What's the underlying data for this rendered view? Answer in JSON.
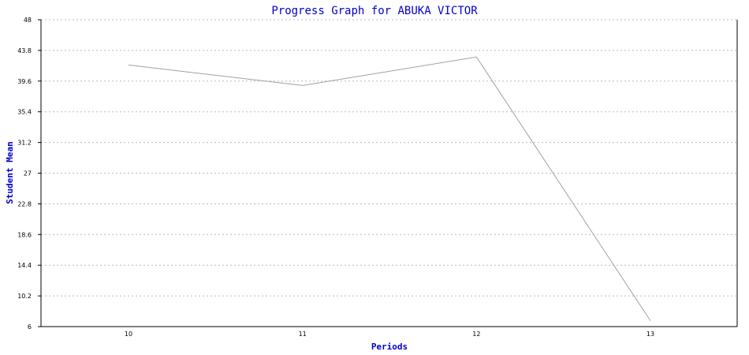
{
  "chart_data": {
    "type": "line",
    "title": "Progress Graph for ABUKA VICTOR",
    "xlabel": "Periods",
    "ylabel": "Student Mean",
    "categories": [
      "10",
      "11",
      "12",
      "13"
    ],
    "y_ticks": [
      "6",
      "10.2",
      "14.4",
      "18.6",
      "22.8",
      "27",
      "31.2",
      "35.4",
      "39.6",
      "43.8",
      "48"
    ],
    "ylim": [
      6,
      48
    ],
    "grid": true,
    "legend": "none",
    "series": [
      {
        "values": [
          41.8,
          39,
          42.9,
          6.8
        ]
      }
    ],
    "colors": {
      "title": "#0000cc",
      "series": "#a0a0a0",
      "grid": "#b8b8b8"
    }
  }
}
